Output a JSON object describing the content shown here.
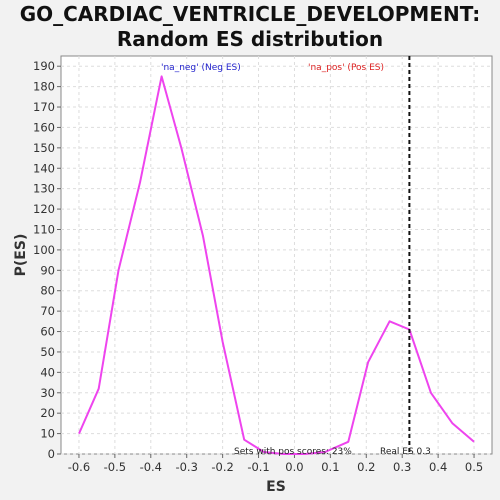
{
  "chart_data": {
    "type": "line",
    "title_line1": "GO_CARDIAC_VENTRICLE_DEVELOPMENT:",
    "title_line2": "Random ES distribution",
    "xlabel": "ES",
    "ylabel": "P(ES)",
    "xlim": [
      -0.65,
      0.55
    ],
    "ylim": [
      0,
      195
    ],
    "x_ticks": [
      -0.6,
      -0.5,
      -0.4,
      -0.3,
      -0.2,
      -0.1,
      0.0,
      0.1,
      0.2,
      0.3,
      0.4,
      0.5
    ],
    "x_tick_labels": [
      "-0.6",
      "-0.5",
      "-0.4",
      "-0.3",
      "-0.2",
      "-0.1",
      "0.0",
      "0.1",
      "0.2",
      "0.3",
      "0.4",
      "0.5"
    ],
    "y_ticks": [
      0,
      10,
      20,
      30,
      40,
      50,
      60,
      70,
      80,
      90,
      100,
      110,
      120,
      130,
      140,
      150,
      160,
      170,
      180,
      190
    ],
    "grid": true,
    "series": [
      {
        "color": "#ee44ee",
        "x": [
          -0.6,
          -0.545,
          -0.49,
          -0.43,
          -0.37,
          -0.315,
          -0.255,
          -0.2,
          -0.14,
          -0.085,
          -0.03,
          0.03,
          0.085,
          0.15,
          0.205,
          0.265,
          0.32,
          0.38,
          0.44,
          0.5
        ],
        "y": [
          10,
          32,
          90,
          133,
          185,
          150,
          107,
          55,
          7,
          1,
          0,
          0,
          1,
          6,
          45,
          65,
          61,
          30,
          15,
          6
        ]
      }
    ],
    "real_es": {
      "x": 0.32,
      "color": "#111111"
    },
    "annotations": {
      "neg_label": "'na_neg' (Neg ES)",
      "neg_color": "#2222cc",
      "pos_label": "'na_pos' (Pos ES)",
      "pos_color": "#dd2222",
      "pos_scores_text": "Sets with pos scores: 23%",
      "real_es_text": "Real ES 0.3"
    }
  }
}
